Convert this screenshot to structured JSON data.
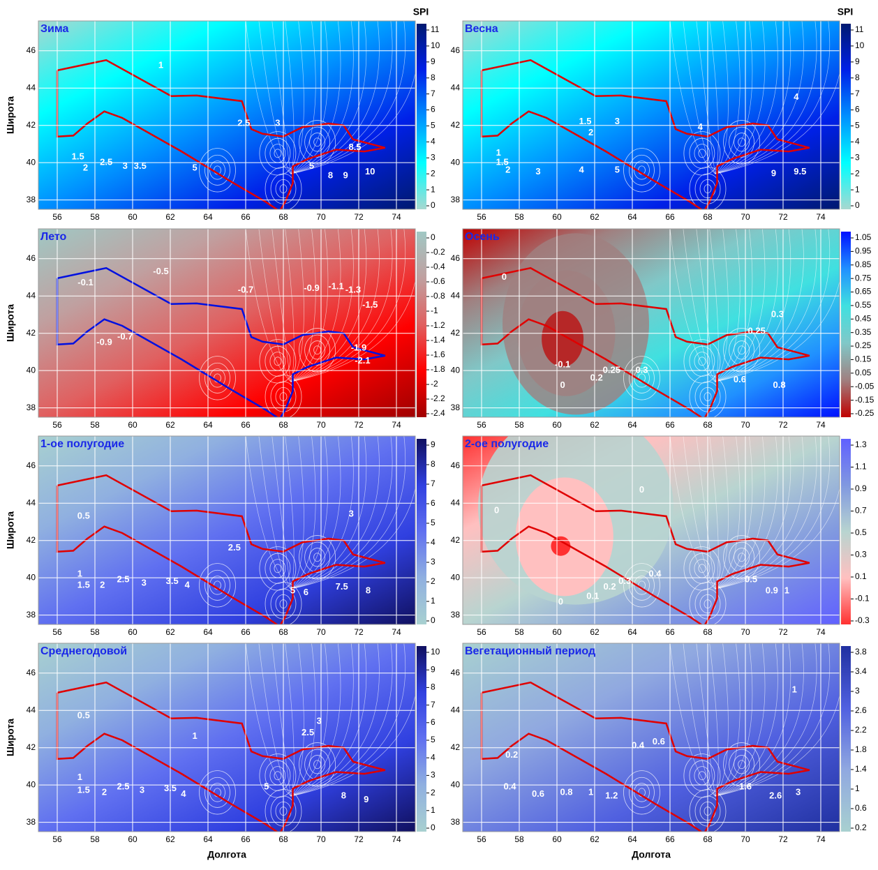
{
  "chart_data": [
    {
      "type": "contour",
      "title": "Зима",
      "colorbar_title": "SPI",
      "y_label": "Широта",
      "xlim": [
        55,
        75
      ],
      "ylim": [
        37.5,
        47.6
      ],
      "xticks": [
        56,
        58,
        60,
        62,
        64,
        66,
        68,
        70,
        72,
        74
      ],
      "yticks": [
        38,
        40,
        42,
        44,
        46
      ],
      "grid": true,
      "border_color": "#e00000",
      "colorbar": {
        "ticks": [
          0,
          1,
          2,
          3,
          4,
          5,
          6,
          7,
          8,
          9,
          10,
          11
        ],
        "colors": [
          "#a8d8d0",
          "#00ffff",
          "#0090ff",
          "#0020e8",
          "#001a70"
        ]
      },
      "annotations": [
        {
          "text": "1",
          "x": 61.5,
          "y": 45.2
        },
        {
          "text": "1.5",
          "x": 57.1,
          "y": 40.3
        },
        {
          "text": "2",
          "x": 57.5,
          "y": 39.7
        },
        {
          "text": "2.5",
          "x": 58.6,
          "y": 40
        },
        {
          "text": "3",
          "x": 59.6,
          "y": 39.8
        },
        {
          "text": "3.5",
          "x": 60.4,
          "y": 39.8
        },
        {
          "text": "5",
          "x": 63.3,
          "y": 39.7
        },
        {
          "text": "2.5",
          "x": 65.9,
          "y": 42.1
        },
        {
          "text": "3",
          "x": 67.7,
          "y": 42.1
        },
        {
          "text": "5",
          "x": 69.5,
          "y": 39.8
        },
        {
          "text": "8",
          "x": 70.5,
          "y": 39.3
        },
        {
          "text": "9",
          "x": 71.3,
          "y": 39.3
        },
        {
          "text": "10",
          "x": 72.6,
          "y": 39.5
        },
        {
          "text": "8.5",
          "x": 71.8,
          "y": 40.8
        }
      ]
    },
    {
      "type": "contour",
      "title": "Весна",
      "colorbar_title": "SPI",
      "xlim": [
        55,
        75
      ],
      "ylim": [
        37.5,
        47.6
      ],
      "xticks": [
        56,
        58,
        60,
        62,
        64,
        66,
        68,
        70,
        72,
        74
      ],
      "yticks": [
        38,
        40,
        42,
        44,
        46
      ],
      "grid": true,
      "border_color": "#e00000",
      "colorbar": {
        "ticks": [
          0,
          1,
          2,
          3,
          4,
          5,
          6,
          7,
          8,
          9,
          10,
          11
        ],
        "colors": [
          "#a8d8d0",
          "#00ffff",
          "#0090ff",
          "#0020e8",
          "#001a70"
        ]
      },
      "annotations": [
        {
          "text": "1.5",
          "x": 61.5,
          "y": 42.2
        },
        {
          "text": "2",
          "x": 61.8,
          "y": 41.6
        },
        {
          "text": "3",
          "x": 63.2,
          "y": 42.2
        },
        {
          "text": "4",
          "x": 67.6,
          "y": 41.9
        },
        {
          "text": "4",
          "x": 72.7,
          "y": 43.5
        },
        {
          "text": "1",
          "x": 56.9,
          "y": 40.5
        },
        {
          "text": "1.5",
          "x": 57.1,
          "y": 40
        },
        {
          "text": "2",
          "x": 57.4,
          "y": 39.6
        },
        {
          "text": "3",
          "x": 59,
          "y": 39.5
        },
        {
          "text": "4",
          "x": 61.3,
          "y": 39.6
        },
        {
          "text": "5",
          "x": 63.2,
          "y": 39.6
        },
        {
          "text": "9",
          "x": 71.5,
          "y": 39.4
        },
        {
          "text": "9.5",
          "x": 72.9,
          "y": 39.5
        }
      ]
    },
    {
      "type": "contour",
      "title": "Лето",
      "y_label": "Широта",
      "xlim": [
        55,
        75
      ],
      "ylim": [
        37.5,
        47.6
      ],
      "xticks": [
        56,
        58,
        60,
        62,
        64,
        66,
        68,
        70,
        72,
        74
      ],
      "yticks": [
        38,
        40,
        42,
        44,
        46
      ],
      "grid": true,
      "border_color": "#0010e0",
      "colorbar": {
        "ticks": [
          0,
          -0.2,
          -0.4,
          -0.6,
          -0.8,
          -1,
          -1.2,
          -1.4,
          -1.6,
          -1.8,
          -2,
          -2.2,
          -2.4
        ],
        "colors": [
          "#a00000",
          "#ff0000",
          "#e06060",
          "#c0a0a0",
          "#a0c8c4"
        ]
      },
      "annotations": [
        {
          "text": "-0.5",
          "x": 61.5,
          "y": 45.3
        },
        {
          "text": "-0.7",
          "x": 66,
          "y": 44.3
        },
        {
          "text": "-0.9",
          "x": 69.5,
          "y": 44.4
        },
        {
          "text": "-1.1",
          "x": 70.8,
          "y": 44.5
        },
        {
          "text": "-1.3",
          "x": 71.7,
          "y": 44.3
        },
        {
          "text": "-1.5",
          "x": 72.6,
          "y": 43.5
        },
        {
          "text": "-0.1",
          "x": 57.5,
          "y": 44.7
        },
        {
          "text": "-0.7",
          "x": 59.6,
          "y": 41.8
        },
        {
          "text": "-0.9",
          "x": 58.5,
          "y": 41.5
        },
        {
          "text": "-1.9",
          "x": 72,
          "y": 41.2
        },
        {
          "text": "-2.1",
          "x": 72.2,
          "y": 40.5
        }
      ]
    },
    {
      "type": "contour",
      "title": "Осень",
      "xlim": [
        55,
        75
      ],
      "ylim": [
        37.5,
        47.6
      ],
      "xticks": [
        56,
        58,
        60,
        62,
        64,
        66,
        68,
        70,
        72,
        74
      ],
      "yticks": [
        38,
        40,
        42,
        44,
        46
      ],
      "grid": true,
      "border_color": "#e00000",
      "colorbar": {
        "ticks": [
          1.05,
          0.95,
          0.85,
          0.75,
          0.65,
          0.55,
          0.45,
          0.35,
          0.25,
          0.15,
          0.05,
          -0.05,
          -0.15,
          -0.25
        ],
        "colors": [
          "#c00000",
          "#a08080",
          "#80c8c8",
          "#40e0e0",
          "#2090ff",
          "#0010ff"
        ]
      },
      "annotations": [
        {
          "text": "0",
          "x": 57.2,
          "y": 45
        },
        {
          "text": "0.25",
          "x": 70.6,
          "y": 42.1
        },
        {
          "text": "0.3",
          "x": 71.7,
          "y": 43
        },
        {
          "text": "-0.1",
          "x": 60.3,
          "y": 40.3
        },
        {
          "text": "0",
          "x": 60.3,
          "y": 39.2
        },
        {
          "text": "0.2",
          "x": 62.1,
          "y": 39.6
        },
        {
          "text": "0.25",
          "x": 62.9,
          "y": 40
        },
        {
          "text": "0.3",
          "x": 64.5,
          "y": 40
        },
        {
          "text": "0.6",
          "x": 69.7,
          "y": 39.5
        },
        {
          "text": "0.8",
          "x": 71.8,
          "y": 39.2
        }
      ]
    },
    {
      "type": "contour",
      "title": "1-ое полугодие",
      "y_label": "Широта",
      "xlim": [
        55,
        75
      ],
      "ylim": [
        37.5,
        47.6
      ],
      "xticks": [
        56,
        58,
        60,
        62,
        64,
        66,
        68,
        70,
        72,
        74
      ],
      "yticks": [
        38,
        40,
        42,
        44,
        46
      ],
      "grid": true,
      "border_color": "#e00000",
      "colorbar": {
        "ticks": [
          0,
          1,
          2,
          3,
          4,
          5,
          6,
          7,
          8,
          9
        ],
        "colors": [
          "#a8d0d0",
          "#90b0e0",
          "#6070f0",
          "#3040e0",
          "#101060"
        ]
      },
      "annotations": [
        {
          "text": "3",
          "x": 71.6,
          "y": 43.4
        },
        {
          "text": "0.5",
          "x": 57.4,
          "y": 43.3
        },
        {
          "text": "1",
          "x": 57.2,
          "y": 40.2
        },
        {
          "text": "1.5",
          "x": 57.4,
          "y": 39.6
        },
        {
          "text": "2",
          "x": 58.4,
          "y": 39.6
        },
        {
          "text": "2.5",
          "x": 59.5,
          "y": 39.9
        },
        {
          "text": "3",
          "x": 60.6,
          "y": 39.7
        },
        {
          "text": "3.5",
          "x": 62.1,
          "y": 39.8
        },
        {
          "text": "4",
          "x": 62.9,
          "y": 39.6
        },
        {
          "text": "2.5",
          "x": 65.4,
          "y": 41.6
        },
        {
          "text": "5",
          "x": 68.5,
          "y": 39.3
        },
        {
          "text": "6",
          "x": 69.2,
          "y": 39.2
        },
        {
          "text": "7.5",
          "x": 71.1,
          "y": 39.5
        },
        {
          "text": "8",
          "x": 72.5,
          "y": 39.3
        }
      ]
    },
    {
      "type": "contour",
      "title": "2-ое полугодие",
      "xlim": [
        55,
        75
      ],
      "ylim": [
        37.5,
        47.6
      ],
      "xticks": [
        56,
        58,
        60,
        62,
        64,
        66,
        68,
        70,
        72,
        74
      ],
      "yticks": [
        38,
        40,
        42,
        44,
        46
      ],
      "grid": true,
      "border_color": "#e00000",
      "colorbar": {
        "ticks": [
          1.3,
          1.1,
          0.9,
          0.7,
          0.5,
          0.3,
          0.1,
          -0.1,
          -0.3
        ],
        "colors": [
          "#ff3030",
          "#ffc0c0",
          "#b8d4d0",
          "#8098e0",
          "#6060ff"
        ]
      },
      "annotations": [
        {
          "text": "0",
          "x": 56.8,
          "y": 43.6
        },
        {
          "text": "0",
          "x": 64.5,
          "y": 44.7
        },
        {
          "text": "0",
          "x": 60.2,
          "y": 38.7
        },
        {
          "text": "0.1",
          "x": 61.9,
          "y": 39
        },
        {
          "text": "0.2",
          "x": 62.8,
          "y": 39.5
        },
        {
          "text": "0.3",
          "x": 63.6,
          "y": 39.8
        },
        {
          "text": "0.4",
          "x": 65.2,
          "y": 40.2
        },
        {
          "text": "0.5",
          "x": 70.3,
          "y": 39.9
        },
        {
          "text": "0.9",
          "x": 71.4,
          "y": 39.3
        },
        {
          "text": "1",
          "x": 72.2,
          "y": 39.3
        }
      ]
    },
    {
      "type": "contour",
      "title": "Среднегодовой",
      "y_label": "Широта",
      "x_label": "Долгота",
      "xlim": [
        55,
        75
      ],
      "ylim": [
        37.5,
        47.6
      ],
      "xticks": [
        56,
        58,
        60,
        62,
        64,
        66,
        68,
        70,
        72,
        74
      ],
      "yticks": [
        38,
        40,
        42,
        44,
        46
      ],
      "grid": true,
      "border_color": "#e00000",
      "colorbar": {
        "ticks": [
          0,
          1,
          2,
          3,
          4,
          5,
          6,
          7,
          8,
          9,
          10
        ],
        "colors": [
          "#a8d0d0",
          "#90b0e0",
          "#6070f0",
          "#3040e0",
          "#101060"
        ]
      },
      "annotations": [
        {
          "text": "0.5",
          "x": 57.4,
          "y": 43.7
        },
        {
          "text": "1",
          "x": 57.2,
          "y": 40.4
        },
        {
          "text": "1.5",
          "x": 57.4,
          "y": 39.7
        },
        {
          "text": "2",
          "x": 58.5,
          "y": 39.6
        },
        {
          "text": "2.5",
          "x": 59.5,
          "y": 39.9
        },
        {
          "text": "3",
          "x": 60.5,
          "y": 39.7
        },
        {
          "text": "3.5",
          "x": 62,
          "y": 39.8
        },
        {
          "text": "4",
          "x": 62.7,
          "y": 39.5
        },
        {
          "text": "5",
          "x": 67.1,
          "y": 39.9
        },
        {
          "text": "8",
          "x": 71.2,
          "y": 39.4
        },
        {
          "text": "9",
          "x": 72.4,
          "y": 39.2
        },
        {
          "text": "2.5",
          "x": 69.3,
          "y": 42.8
        },
        {
          "text": "3",
          "x": 69.9,
          "y": 43.4
        },
        {
          "text": "1",
          "x": 63.3,
          "y": 42.6
        }
      ]
    },
    {
      "type": "contour",
      "title": "Вегетационный период",
      "x_label": "Долгота",
      "xlim": [
        55,
        75
      ],
      "ylim": [
        37.5,
        47.6
      ],
      "xticks": [
        56,
        58,
        60,
        62,
        64,
        66,
        68,
        70,
        72,
        74
      ],
      "yticks": [
        38,
        40,
        42,
        44,
        46
      ],
      "grid": true,
      "border_color": "#e00000",
      "colorbar": {
        "ticks": [
          0.2,
          0.6,
          1,
          1.4,
          1.8,
          2.2,
          2.6,
          3,
          3.4,
          3.8
        ],
        "colors": [
          "#a8d0d0",
          "#90a8e0",
          "#5060e0",
          "#2030a0"
        ]
      },
      "annotations": [
        {
          "text": "1",
          "x": 72.6,
          "y": 45.1
        },
        {
          "text": "0.2",
          "x": 57.6,
          "y": 41.6
        },
        {
          "text": "0.4",
          "x": 57.5,
          "y": 39.9
        },
        {
          "text": "0.6",
          "x": 59,
          "y": 39.5
        },
        {
          "text": "0.8",
          "x": 60.5,
          "y": 39.6
        },
        {
          "text": "1",
          "x": 61.8,
          "y": 39.6
        },
        {
          "text": "1.2",
          "x": 62.9,
          "y": 39.4
        },
        {
          "text": "0.4",
          "x": 64.3,
          "y": 42.1
        },
        {
          "text": "0.6",
          "x": 65.4,
          "y": 42.3
        },
        {
          "text": "1.6",
          "x": 70,
          "y": 39.9
        },
        {
          "text": "2.6",
          "x": 71.6,
          "y": 39.4
        },
        {
          "text": "3",
          "x": 72.8,
          "y": 39.6
        }
      ]
    }
  ]
}
